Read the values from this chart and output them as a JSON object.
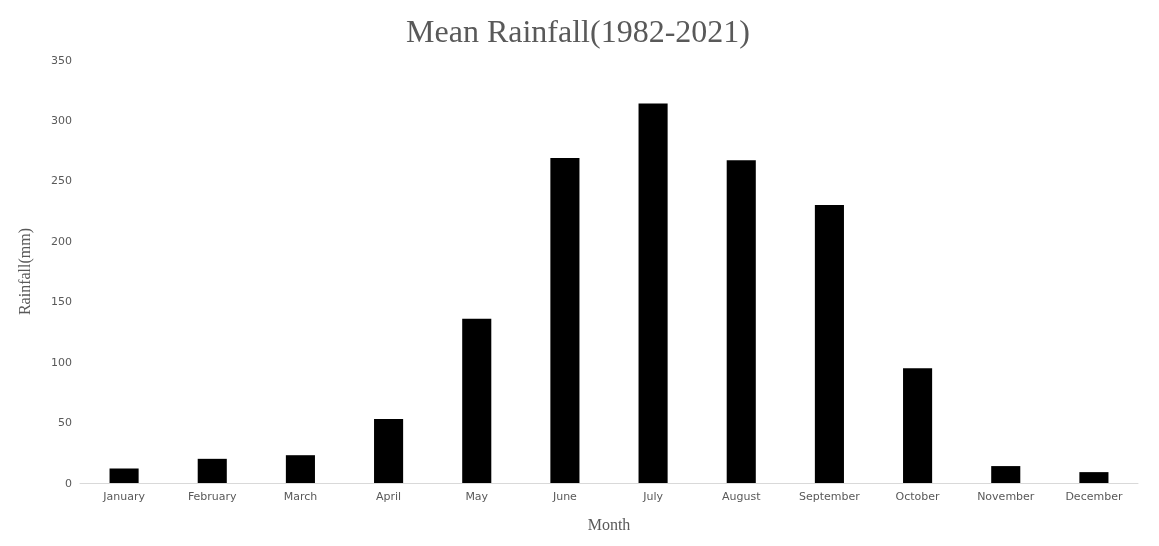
{
  "chart_data": {
    "type": "bar",
    "title": "Mean Rainfall(1982-2021)",
    "xlabel": "Month",
    "ylabel": "Rainfall(mm)",
    "categories": [
      "January",
      "February",
      "March",
      "April",
      "May",
      "June",
      "July",
      "August",
      "September",
      "October",
      "November",
      "December"
    ],
    "values": [
      12,
      20,
      23,
      53,
      136,
      269,
      314,
      267,
      230,
      95,
      14,
      9
    ],
    "color": "#000000",
    "ylim": [
      0,
      350
    ],
    "yticks": [
      0,
      50,
      100,
      150,
      200,
      250,
      300,
      350
    ],
    "grid": false
  }
}
